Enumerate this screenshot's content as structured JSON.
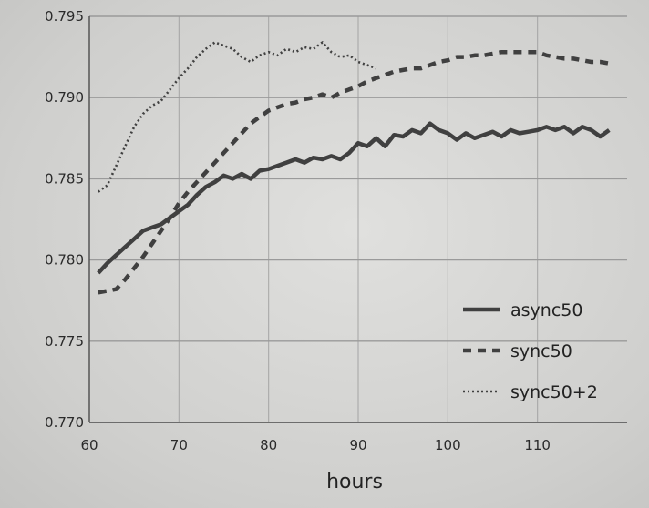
{
  "chart_data": {
    "type": "line",
    "title": "",
    "xlabel": "hours",
    "ylabel": "",
    "xlim": [
      60,
      120
    ],
    "ylim": [
      0.77,
      0.795
    ],
    "xticks": [
      60,
      70,
      80,
      90,
      100,
      110
    ],
    "yticks": [
      0.77,
      0.775,
      0.78,
      0.785,
      0.79,
      0.795
    ],
    "xtick_labels": [
      "60",
      "70",
      "80",
      "90",
      "100",
      "110"
    ],
    "ytick_labels": [
      "0.770",
      "0.775",
      "0.780",
      "0.785",
      "0.790",
      "0.795"
    ],
    "grid": true,
    "legend_position": "lower-right",
    "colors": {
      "line": "#404040",
      "grid": "#9a9a9a",
      "axis": "#555555"
    },
    "series": [
      {
        "name": "async50",
        "style": "solid",
        "x": [
          61,
          62,
          63,
          64,
          65,
          66,
          67,
          68,
          69,
          70,
          71,
          72,
          73,
          74,
          75,
          76,
          77,
          78,
          79,
          80,
          81,
          82,
          83,
          84,
          85,
          86,
          87,
          88,
          89,
          90,
          91,
          92,
          93,
          94,
          95,
          96,
          97,
          98,
          99,
          100,
          101,
          102,
          103,
          104,
          105,
          106,
          107,
          108,
          109,
          110,
          111,
          112,
          113,
          114,
          115,
          116,
          117,
          118
        ],
        "values": [
          0.7792,
          0.7798,
          0.7803,
          0.7808,
          0.7813,
          0.7818,
          0.782,
          0.7822,
          0.7826,
          0.783,
          0.7834,
          0.784,
          0.7845,
          0.7848,
          0.7852,
          0.785,
          0.7853,
          0.785,
          0.7855,
          0.7856,
          0.7858,
          0.786,
          0.7862,
          0.786,
          0.7863,
          0.7862,
          0.7864,
          0.7862,
          0.7866,
          0.7872,
          0.787,
          0.7875,
          0.787,
          0.7877,
          0.7876,
          0.788,
          0.7878,
          0.7884,
          0.788,
          0.7878,
          0.7874,
          0.7878,
          0.7875,
          0.7877,
          0.7879,
          0.7876,
          0.788,
          0.7878,
          0.7879,
          0.788,
          0.7882,
          0.788,
          0.7882,
          0.7878,
          0.7882,
          0.788,
          0.7876,
          0.788
        ]
      },
      {
        "name": "sync50",
        "style": "dashed",
        "x": [
          61,
          62,
          63,
          64,
          65,
          66,
          67,
          68,
          69,
          70,
          71,
          72,
          73,
          74,
          75,
          76,
          77,
          78,
          79,
          80,
          81,
          82,
          83,
          84,
          85,
          86,
          87,
          88,
          89,
          90,
          91,
          92,
          93,
          94,
          95,
          96,
          97,
          98,
          99,
          100,
          101,
          102,
          103,
          104,
          105,
          106,
          107,
          108,
          109,
          110,
          111,
          112,
          113,
          114,
          115,
          116,
          117,
          118
        ],
        "values": [
          0.778,
          0.7781,
          0.7782,
          0.7788,
          0.7795,
          0.7802,
          0.781,
          0.7818,
          0.7826,
          0.7835,
          0.7842,
          0.7848,
          0.7854,
          0.786,
          0.7866,
          0.7872,
          0.7878,
          0.7884,
          0.7888,
          0.7892,
          0.7894,
          0.7896,
          0.7897,
          0.7899,
          0.79,
          0.7902,
          0.79,
          0.7903,
          0.7905,
          0.7907,
          0.791,
          0.7912,
          0.7914,
          0.7916,
          0.7917,
          0.7918,
          0.7918,
          0.792,
          0.7922,
          0.7923,
          0.7925,
          0.7925,
          0.7926,
          0.7926,
          0.7927,
          0.7928,
          0.7928,
          0.7928,
          0.7928,
          0.7928,
          0.7926,
          0.7925,
          0.7924,
          0.7924,
          0.7923,
          0.7922,
          0.7922,
          0.7921
        ]
      },
      {
        "name": "sync50+2",
        "style": "dotted",
        "x": [
          61,
          62,
          63,
          64,
          65,
          66,
          67,
          68,
          69,
          70,
          71,
          72,
          73,
          74,
          75,
          76,
          77,
          78,
          79,
          80,
          81,
          82,
          83,
          84,
          85,
          86,
          87,
          88,
          89,
          90,
          91,
          92
        ],
        "values": [
          0.7842,
          0.7846,
          0.7858,
          0.787,
          0.7882,
          0.789,
          0.7895,
          0.7898,
          0.7905,
          0.7912,
          0.7918,
          0.7925,
          0.793,
          0.7934,
          0.7932,
          0.793,
          0.7925,
          0.7922,
          0.7926,
          0.7928,
          0.7926,
          0.793,
          0.7928,
          0.7931,
          0.793,
          0.7934,
          0.7928,
          0.7925,
          0.7926,
          0.7922,
          0.792,
          0.7918
        ]
      }
    ]
  }
}
